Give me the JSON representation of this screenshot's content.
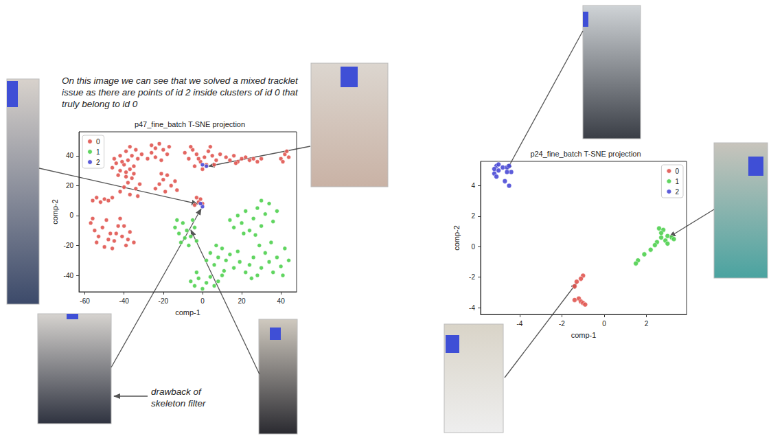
{
  "chart_data": [
    {
      "type": "scatter",
      "title": "p47_fine_batch T-SNE projection",
      "x_label": "comp-1",
      "y_label": "comp-2",
      "xlim": [
        -63,
        48
      ],
      "xticks": [
        -60,
        -40,
        -20,
        0,
        20,
        40
      ],
      "ylim": [
        -51,
        56
      ],
      "yticks": [
        -40,
        -20,
        0,
        20,
        40
      ],
      "grid": false,
      "legend": "upper left",
      "marker": "circle",
      "annotations": [
        "On this image we can see that we solved a mixed tracklet issue as there are points of id 2 inside clusters of id 0 that truly belong to id 0",
        "drawback of skeleton filter"
      ],
      "series": [
        {
          "name": "0",
          "color": "#e05550",
          "x": [
            -46,
            -44,
            -42,
            -40,
            -38,
            -36,
            -42,
            -39,
            -37,
            -34,
            -33,
            -31,
            -45,
            -41,
            -35,
            -43,
            -39,
            -37,
            -28,
            -26,
            -24,
            -22,
            -20,
            -18,
            -24,
            -21,
            -17,
            -26,
            -9,
            -7,
            -5,
            -3,
            -1,
            1,
            3,
            5,
            7,
            9,
            -4,
            0,
            2,
            -6,
            4,
            -2,
            6,
            12,
            14,
            16,
            18,
            20,
            22,
            24,
            26,
            28,
            30,
            17,
            40,
            42,
            44,
            43,
            41,
            -42,
            -40,
            -38,
            -36,
            -34,
            -32,
            -37,
            -35,
            -39,
            -33,
            -24,
            -22,
            -20,
            -18,
            -16,
            -14,
            -19,
            -13,
            -21,
            -56,
            -54,
            -52,
            -50,
            -48,
            -46,
            -57,
            -55,
            -53,
            -51,
            -49,
            -47,
            -45,
            -43,
            -41,
            -39,
            -37,
            -35,
            -54,
            -50,
            -46,
            -42,
            -48,
            -44,
            -56,
            -40,
            -38,
            -3,
            -1,
            -2,
            0,
            -4
          ],
          "y": [
            32,
            35,
            30,
            34,
            37,
            40,
            40,
            43,
            46,
            44,
            38,
            41,
            38,
            36,
            33,
            27,
            29,
            31,
            38,
            42,
            45,
            48,
            44,
            41,
            39,
            37,
            46,
            47,
            42,
            38,
            44,
            41,
            36,
            39,
            43,
            40,
            37,
            41,
            33,
            31,
            34,
            46,
            46,
            38,
            34,
            39,
            37,
            40,
            36,
            38,
            39,
            37,
            38,
            36,
            38,
            35,
            38,
            41,
            39,
            43,
            36,
            16,
            19,
            22,
            25,
            18,
            21,
            14,
            28,
            26,
            13,
            18,
            21,
            24,
            27,
            20,
            23,
            16,
            17,
            28,
            10,
            12,
            9,
            11,
            10,
            12,
            -5,
            -10,
            -14,
            -8,
            -3,
            -12,
            -17,
            -7,
            -14,
            -20,
            -11,
            -18,
            -18,
            -21,
            -22,
            -2,
            -16,
            -12,
            -2,
            -7,
            -16,
            12,
            11,
            9,
            8,
            7
          ]
        },
        {
          "name": "1",
          "color": "#4fd04f",
          "x": [
            -14,
            -12,
            -10,
            -8,
            -6,
            -4,
            -3,
            -11,
            -7,
            -13,
            -5,
            -9,
            2,
            4,
            6,
            8,
            10,
            12,
            14,
            16,
            18,
            11,
            7,
            19,
            14,
            16,
            18,
            20,
            22,
            24,
            26,
            28,
            30,
            32,
            34,
            36,
            27,
            21,
            38,
            30,
            22,
            24,
            26,
            28,
            30,
            32,
            34,
            36,
            38,
            40,
            42,
            44,
            35,
            29,
            41,
            25,
            -6,
            -4,
            -2,
            0,
            2,
            4,
            6,
            8,
            10,
            -3
          ],
          "y": [
            -8,
            -12,
            -5,
            -10,
            -14,
            -8,
            -17,
            -18,
            -20,
            -3,
            -3,
            -15,
            -30,
            -25,
            -33,
            -28,
            -22,
            -30,
            -26,
            -35,
            -24,
            -37,
            -20,
            -31,
            -3,
            -8,
            0,
            -5,
            3,
            -10,
            -2,
            5,
            -7,
            1,
            8,
            -4,
            -13,
            -12,
            3,
            10,
            -38,
            -33,
            -28,
            -40,
            -35,
            -25,
            -31,
            -38,
            -28,
            -34,
            -22,
            -30,
            -18,
            -20,
            -40,
            -42,
            -44,
            -47,
            -42,
            -49,
            -45,
            -41,
            -47,
            -44,
            -40,
            -38
          ]
        },
        {
          "name": "2",
          "color": "#4a4ad6",
          "x": [
            0,
            -1,
            2,
            0
          ],
          "y": [
            6,
            8,
            33,
            34
          ]
        }
      ]
    },
    {
      "type": "scatter",
      "title": "p24_fine_batch T-SNE projection",
      "x_label": "comp-1",
      "y_label": "comp-2",
      "xlim": [
        -5.85,
        3.9
      ],
      "xticks": [
        -4,
        -2,
        0,
        2
      ],
      "ylim": [
        -4.45,
        5.6
      ],
      "yticks": [
        -4,
        -2,
        0,
        2,
        4
      ],
      "grid": false,
      "legend": "upper right",
      "marker": "circle",
      "series": [
        {
          "name": "0",
          "color": "#e05550",
          "x": [
            -1.0,
            -1.1,
            -1.3,
            -1.4,
            -1.2,
            -1.4,
            -1.1,
            -1.0,
            -0.9
          ],
          "y": [
            -1.9,
            -2.1,
            -2.3,
            -2.6,
            -3.4,
            -3.5,
            -3.6,
            -3.7,
            -3.8
          ]
        },
        {
          "name": "1",
          "color": "#4fd04f",
          "x": [
            2.6,
            2.8,
            2.7,
            3.0,
            3.2,
            3.3,
            2.9,
            2.5,
            2.4,
            2.2,
            1.9,
            1.6,
            1.5,
            3.0,
            2.7
          ],
          "y": [
            1.2,
            1.1,
            0.9,
            0.7,
            0.6,
            0.5,
            0.4,
            0.3,
            0.1,
            -0.2,
            -0.5,
            -0.9,
            -1.1,
            0.2,
            0.6
          ]
        },
        {
          "name": "2",
          "color": "#4a4ad6",
          "x": [
            -5.1,
            -5.0,
            -4.8,
            -4.6,
            -4.5,
            -5.2,
            -5.1,
            -4.7,
            -4.5,
            -5.0,
            -4.4,
            -5.2,
            -4.6
          ],
          "y": [
            5.3,
            5.0,
            5.2,
            5.2,
            5.3,
            4.8,
            4.6,
            4.3,
            4.0,
            5.4,
            4.9,
            5.1,
            4.9
          ]
        }
      ]
    }
  ]
}
